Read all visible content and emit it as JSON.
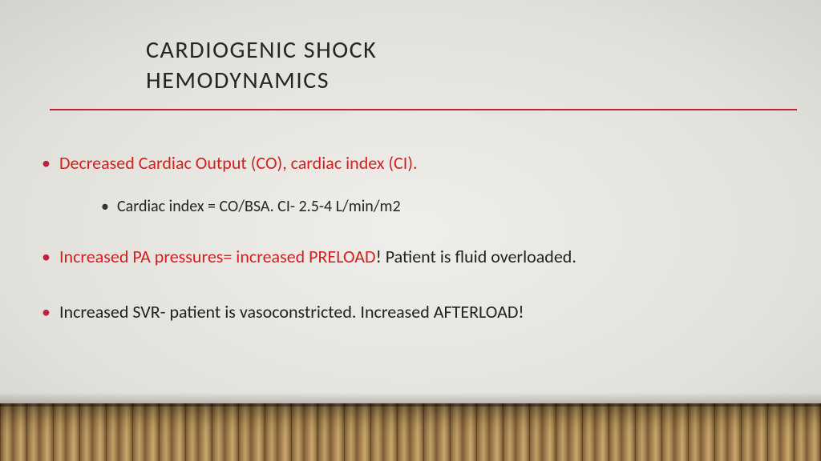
{
  "colors": {
    "accent_rule": "#c0203b",
    "highlight_text": "#d32020",
    "body_text": "#222222",
    "title_text": "#262626"
  },
  "title": {
    "line1": "CARDIOGENIC SHOCK",
    "line2": "HEMODYNAMICS"
  },
  "bullets": {
    "b1_text": "Decreased Cardiac Output (CO), cardiac index (CI).",
    "b1_sub": "Cardiac index = CO/BSA.  CI- 2.5-4 L/min/m2",
    "b2_red": "Increased PA pressures= increased PRELOAD",
    "b2_rest": "!  Patient is fluid overloaded.",
    "b3_text": "Increased SVR- patient is vasoconstricted. Increased AFTERLOAD!"
  }
}
